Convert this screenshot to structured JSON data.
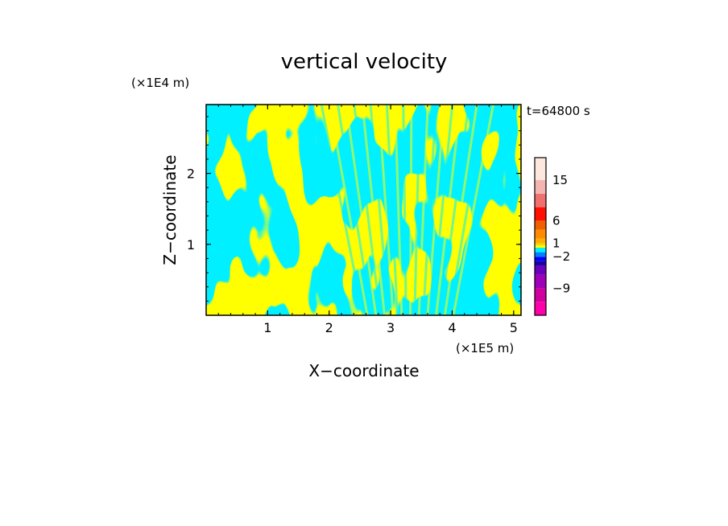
{
  "chart_data": {
    "type": "heatmap",
    "title": "vertical velocity",
    "xlabel": "X−coordinate",
    "ylabel": "Z−coordinate",
    "x_unit": "(×1E5 m)",
    "y_unit": "(×1E4 m)",
    "time_label": "t=64800 s",
    "xlim": [
      0,
      5.12
    ],
    "ylim": [
      0,
      2.97
    ],
    "x_ticks": [
      1,
      2,
      3,
      4,
      5
    ],
    "y_ticks": [
      1,
      2
    ],
    "colors": {
      "positive": "#ffff00",
      "negative": "#00f0ff",
      "frame": "#000000"
    },
    "colorbar": {
      "tick_labels": [
        {
          "label": "15",
          "value": 15
        },
        {
          "label": "6",
          "value": 6
        },
        {
          "label": "1",
          "value": 1
        },
        {
          "label": "−2",
          "value": -2
        },
        {
          "label": "−9",
          "value": -9
        }
      ],
      "bins": [
        {
          "lo": -15,
          "hi": -12,
          "color": "#ff00aa"
        },
        {
          "lo": -12,
          "hi": -9,
          "color": "#d000a0"
        },
        {
          "lo": -9,
          "hi": -6,
          "color": "#a000b8"
        },
        {
          "lo": -6,
          "hi": -4,
          "color": "#6a00c0"
        },
        {
          "lo": -4,
          "hi": -3,
          "color": "#2000a0"
        },
        {
          "lo": -3,
          "hi": -2,
          "color": "#0000ff"
        },
        {
          "lo": -2,
          "hi": -1,
          "color": "#0080ff"
        },
        {
          "lo": -1,
          "hi": 0,
          "color": "#00f0ff"
        },
        {
          "lo": 0,
          "hi": 0.5,
          "color": "#ffff00"
        },
        {
          "lo": 0.5,
          "hi": 1,
          "color": "#ffd000"
        },
        {
          "lo": 1,
          "hi": 2,
          "color": "#ffb000"
        },
        {
          "lo": 2,
          "hi": 4,
          "color": "#ff8c00"
        },
        {
          "lo": 4,
          "hi": 6,
          "color": "#f06000"
        },
        {
          "lo": 6,
          "hi": 9,
          "color": "#ff1000"
        },
        {
          "lo": 9,
          "hi": 12,
          "color": "#f07070"
        },
        {
          "lo": 12,
          "hi": 15,
          "color": "#f4b4b0"
        },
        {
          "lo": 15,
          "hi": 20,
          "color": "#fde8e0"
        }
      ]
    },
    "legend": "right"
  }
}
